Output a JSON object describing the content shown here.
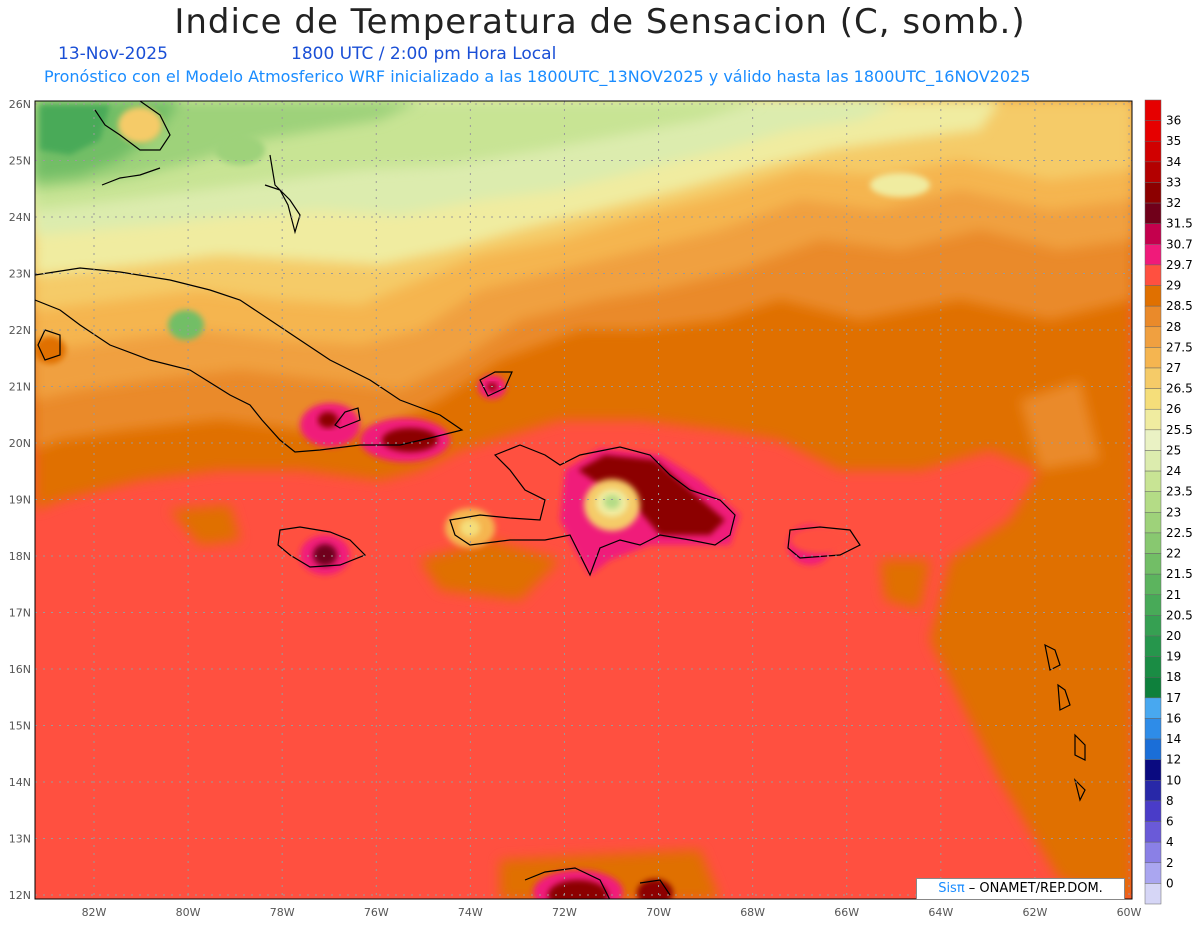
{
  "title": "Indice de Temperatura de Sensacion (C, somb.)",
  "date": "13-Nov-2025",
  "time": "1800 UTC / 2:00 pm Hora Local",
  "forecast_info": "Pronóstico con el Modelo Atmosferico WRF inicializado a las 1800UTC_13NOV2025 y válido hasta las  1800UTC_16NOV2025",
  "credit": {
    "logo": "Sisπ",
    "text": " – ONAMET/REP.DOM."
  },
  "lat_labels": [
    "26N",
    "25N",
    "24N",
    "23N",
    "22N",
    "21N",
    "20N",
    "19N",
    "18N",
    "17N",
    "16N",
    "15N",
    "14N",
    "13N",
    "12N"
  ],
  "lon_labels": [
    "82W",
    "80W",
    "78W",
    "76W",
    "74W",
    "72W",
    "70W",
    "68W",
    "66W",
    "64W",
    "62W",
    "60W"
  ],
  "colorbar": [
    {
      "label": "36",
      "color": "#e60000"
    },
    {
      "label": "35",
      "color": "#d10000"
    },
    {
      "label": "34",
      "color": "#b30000"
    },
    {
      "label": "33",
      "color": "#8c0000"
    },
    {
      "label": "32",
      "color": "#70001a"
    },
    {
      "label": "31.5",
      "color": "#c4004d"
    },
    {
      "label": "30.7",
      "color": "#f01a7a"
    },
    {
      "label": "29.7",
      "color": "#ff5040"
    },
    {
      "label": "29",
      "color": "#e07000"
    },
    {
      "label": "28.5",
      "color": "#ea8a2a"
    },
    {
      "label": "28",
      "color": "#f0a040"
    },
    {
      "label": "27.5",
      "color": "#f5b550"
    },
    {
      "label": "27",
      "color": "#f5cb68"
    },
    {
      "label": "26.5",
      "color": "#f5de7a"
    },
    {
      "label": "26",
      "color": "#f0eca0"
    },
    {
      "label": "25.5",
      "color": "#eaf2c4"
    },
    {
      "label": "25",
      "color": "#dcecae"
    },
    {
      "label": "24",
      "color": "#c8e494"
    },
    {
      "label": "23.5",
      "color": "#b4dc86"
    },
    {
      "label": "23",
      "color": "#9ed27a"
    },
    {
      "label": "22.5",
      "color": "#88c870"
    },
    {
      "label": "22",
      "color": "#72be66"
    },
    {
      "label": "21.5",
      "color": "#5cb45e"
    },
    {
      "label": "21",
      "color": "#48aa58"
    },
    {
      "label": "20.5",
      "color": "#36a052"
    },
    {
      "label": "20",
      "color": "#26964c"
    },
    {
      "label": "19",
      "color": "#1a8c44"
    },
    {
      "label": "18",
      "color": "#0e803c"
    },
    {
      "label": "17",
      "color": "#48a8f0"
    },
    {
      "label": "16",
      "color": "#2e8ce8"
    },
    {
      "label": "14",
      "color": "#1a6ed8"
    },
    {
      "label": "12",
      "color": "#0a0a80"
    },
    {
      "label": "10",
      "color": "#2828a8"
    },
    {
      "label": "8",
      "color": "#4a3cc8"
    },
    {
      "label": "6",
      "color": "#6a5ad8"
    },
    {
      "label": "4",
      "color": "#8a80e6"
    },
    {
      "label": "2",
      "color": "#aaa6f0"
    },
    {
      "label": "0",
      "color": "#d6d6f6"
    }
  ]
}
